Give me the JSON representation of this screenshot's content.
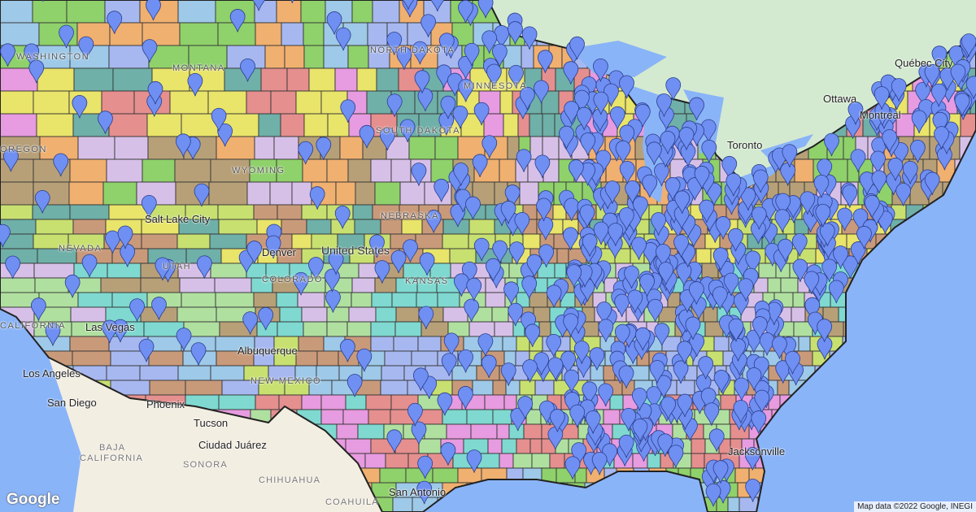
{
  "map": {
    "colors": {
      "ocean": "#8ab4f8",
      "canada": "#d4ead0",
      "mexico": "#f3eee2",
      "pin": "#6f8ff2",
      "pin_stroke": "#2c3f8c",
      "border": "#222222"
    },
    "labels": {
      "quebec": "Québec City",
      "ottawa": "Ottawa",
      "montreal": "Montreal",
      "toronto": "Toronto",
      "salt_lake": "Salt Lake City",
      "denver": "Denver",
      "las_vegas": "Las Vegas",
      "albuquerque": "Albuquerque",
      "phoenix": "Phoenix",
      "tucson": "Tucson",
      "juarez": "Ciudad Juárez",
      "san_diego": "San Diego",
      "los_angeles": "Los Angeles",
      "san_antonio": "San Antonio",
      "jacksonville": "Jacksonville",
      "us": "United States"
    },
    "states": {
      "washington": "WASHINGTON",
      "montana": "MONTANA",
      "north_dakota": "NORTH DAKOTA",
      "minnesota": "MINNESOTA",
      "south_dakota": "SOUTH DAKOTA",
      "wyoming": "WYOMING",
      "oregon": "OREGON",
      "nevada": "NEVADA",
      "utah": "UTAH",
      "colorado": "COLORADO",
      "nebraska": "NEBRASKA",
      "kansas": "KANSAS",
      "new_mexico": "NEW MEXICO",
      "california": "CALIFORNIA"
    },
    "regions": {
      "baja": "BAJA",
      "baja2": "CALIFORNIA",
      "sonora": "SONORA",
      "chihuahua": "CHIHUAHUA",
      "coahuila": "COAHUILA"
    },
    "attribution": "Map data ©2022 Google, INEGI",
    "logo": "Google"
  }
}
